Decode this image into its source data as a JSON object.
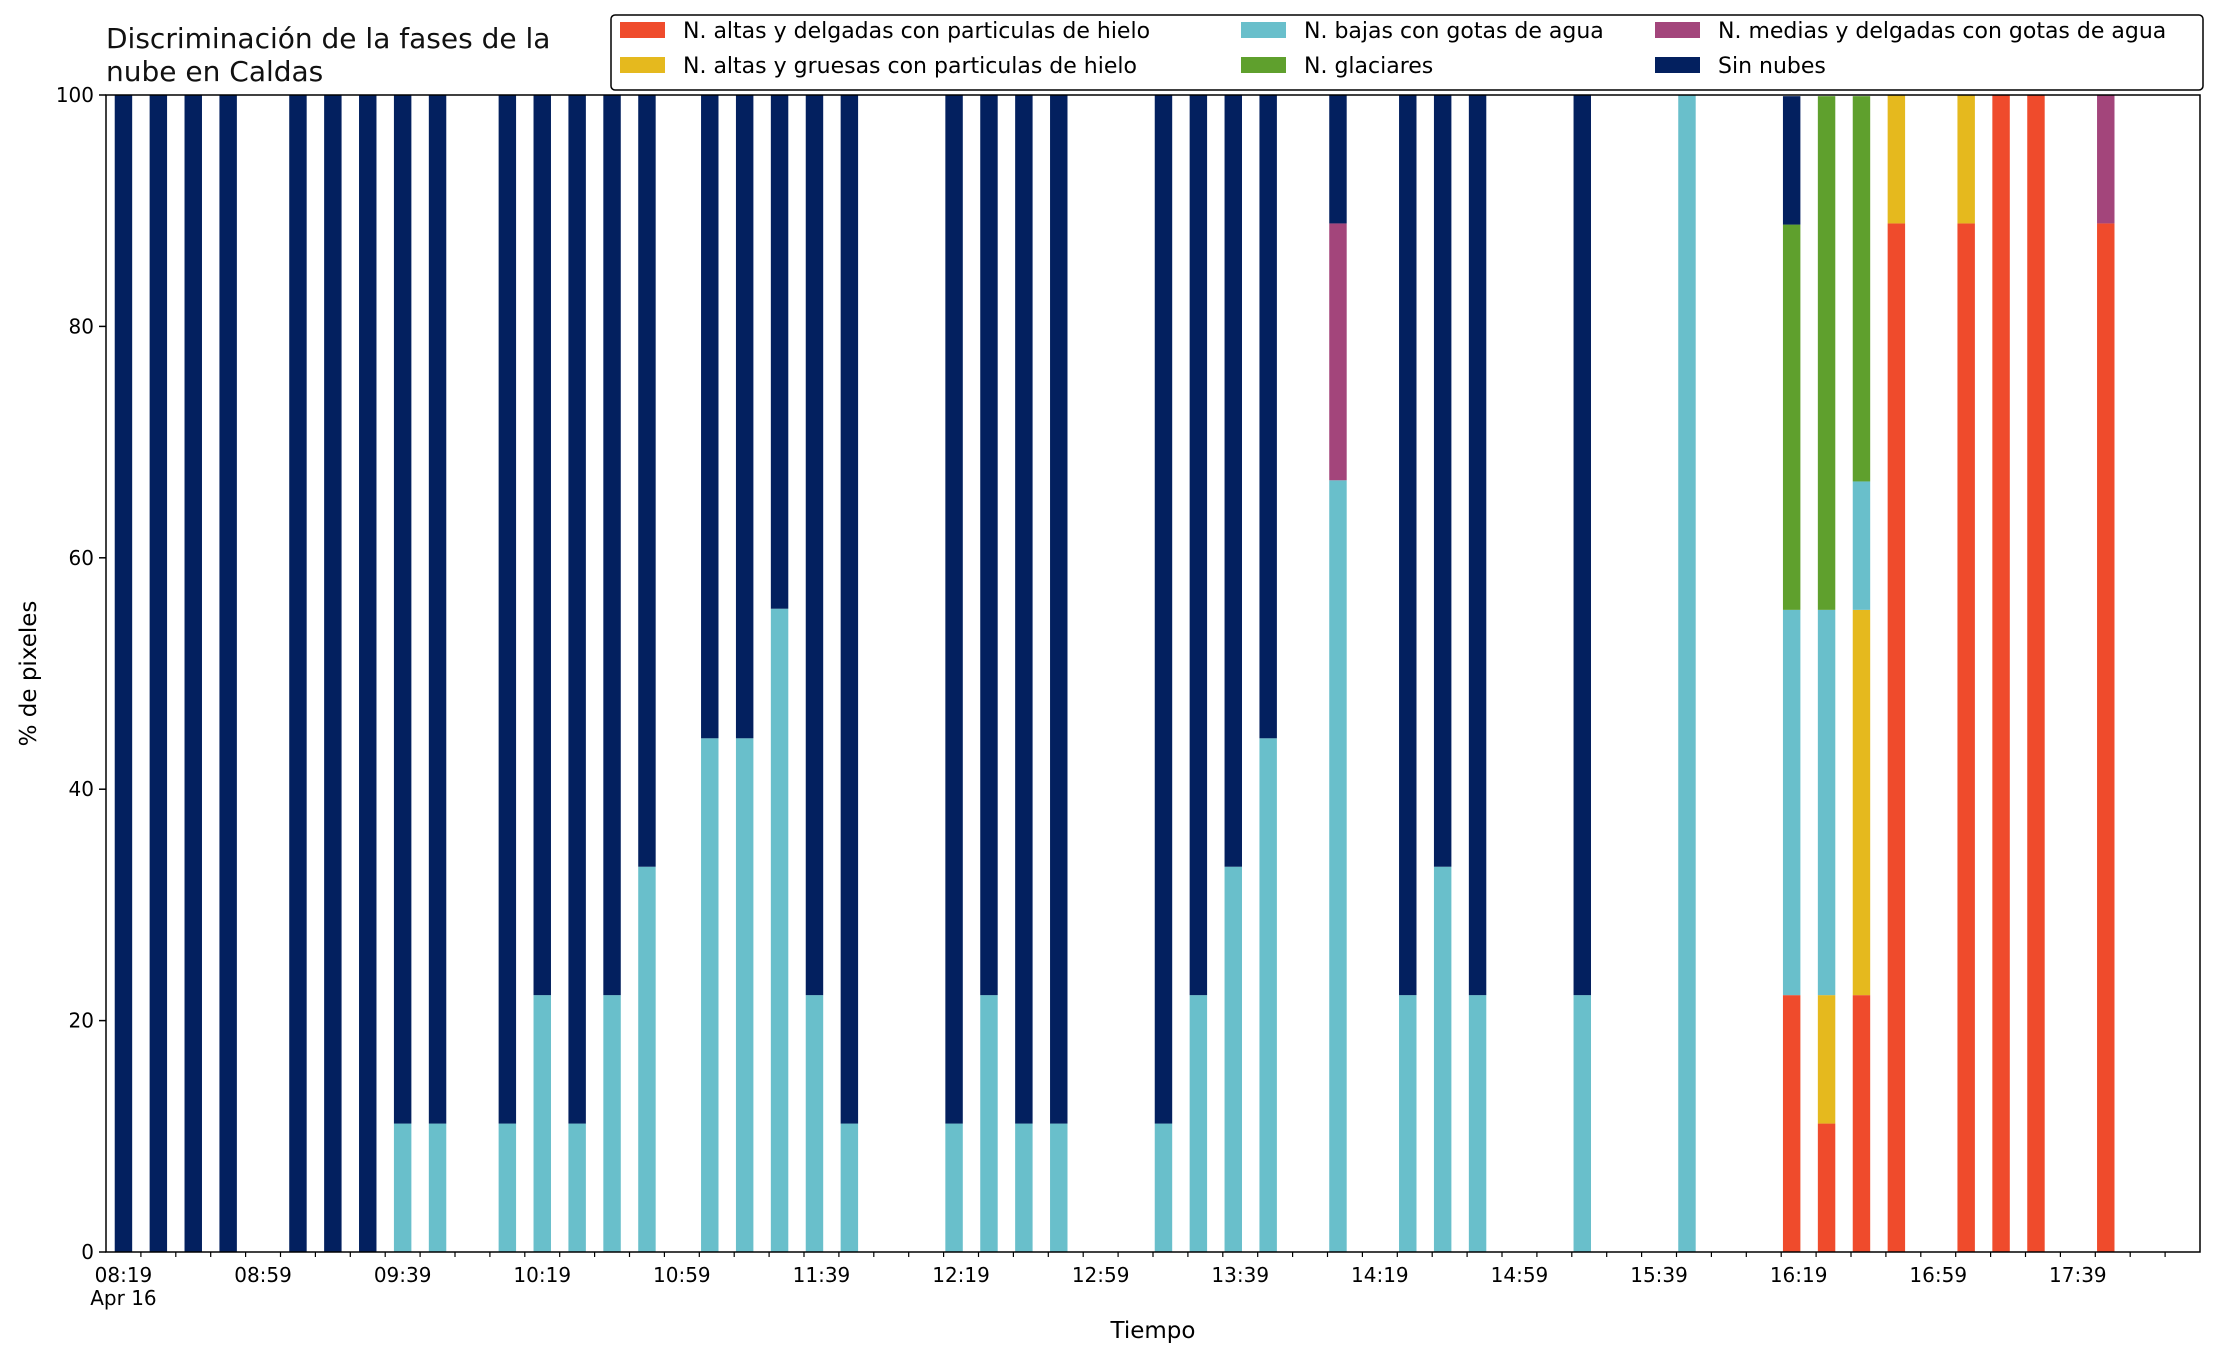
{
  "chart_data": {
    "type": "bar",
    "stacked": true,
    "title": "Discriminación de la fases de la nube en Caldas",
    "xlabel": "Tiempo",
    "ylabel": "% de pixeles",
    "ylim": [
      0,
      100
    ],
    "yticks": [
      0,
      20,
      40,
      60,
      80,
      100
    ],
    "x_range": [
      "08:14",
      "18:14"
    ],
    "xtick_labels": [
      "08:19",
      "08:59",
      "09:39",
      "10:19",
      "10:59",
      "11:39",
      "12:19",
      "12:59",
      "13:39",
      "14:19",
      "14:59",
      "15:39",
      "16:19",
      "16:59",
      "17:39"
    ],
    "xtick_date": "Apr 16",
    "minor_tick_interval_minutes": 10,
    "bar_width_minutes": 5,
    "grid": false,
    "legend_position": "top-right",
    "legend_ncols": 3,
    "categories": [
      "08:19",
      "08:29",
      "08:39",
      "08:49",
      "09:09",
      "09:19",
      "09:29",
      "09:39",
      "09:49",
      "10:09",
      "10:19",
      "10:29",
      "10:39",
      "10:49",
      "11:07",
      "11:17",
      "11:27",
      "11:37",
      "11:47",
      "12:17",
      "12:27",
      "12:37",
      "12:47",
      "13:17",
      "13:27",
      "13:37",
      "13:47",
      "14:07",
      "14:27",
      "14:37",
      "14:47",
      "15:17",
      "15:47",
      "16:17",
      "16:27",
      "16:37",
      "16:47",
      "17:07",
      "17:17",
      "17:27",
      "17:47"
    ],
    "series": [
      {
        "name": "N. altas y delgadas con particulas de hielo",
        "color": "#ef4b2c",
        "values": [
          0,
          0,
          0,
          0,
          0,
          0,
          0,
          0,
          0,
          0,
          0,
          0,
          0,
          0,
          0,
          0,
          0,
          0,
          0,
          0,
          0,
          0,
          0,
          0,
          0,
          0,
          0,
          0,
          0,
          0,
          0,
          0,
          0,
          22.2,
          11.1,
          22.2,
          88.9,
          88.9,
          100,
          100,
          88.9
        ]
      },
      {
        "name": "N. altas y gruesas con particulas de hielo",
        "color": "#e5b91e",
        "values": [
          0,
          0,
          0,
          0,
          0,
          0,
          0,
          0,
          0,
          0,
          0,
          0,
          0,
          0,
          0,
          0,
          0,
          0,
          0,
          0,
          0,
          0,
          0,
          0,
          0,
          0,
          0,
          0,
          0,
          0,
          0,
          0,
          0,
          0,
          11.1,
          33.3,
          11.1,
          11.1,
          0,
          0,
          0
        ]
      },
      {
        "name": "N. bajas con gotas de agua",
        "color": "#69bfcb",
        "values": [
          0,
          0,
          0,
          0,
          0,
          0,
          0,
          11.1,
          11.1,
          11.1,
          22.2,
          11.1,
          22.2,
          33.3,
          44.4,
          44.4,
          55.6,
          22.2,
          11.1,
          11.1,
          22.2,
          11.1,
          11.1,
          11.1,
          22.2,
          33.3,
          44.4,
          66.7,
          22.2,
          33.3,
          22.2,
          22.2,
          100,
          33.3,
          33.3,
          11.1,
          0,
          0,
          0,
          0,
          0
        ]
      },
      {
        "name": "N. glaciares",
        "color": "#5fa02d",
        "values": [
          0,
          0,
          0,
          0,
          0,
          0,
          0,
          0,
          0,
          0,
          0,
          0,
          0,
          0,
          0,
          0,
          0,
          0,
          0,
          0,
          0,
          0,
          0,
          0,
          0,
          0,
          0,
          0,
          0,
          0,
          0,
          0,
          0,
          33.3,
          44.4,
          33.3,
          0,
          0,
          0,
          0,
          0
        ]
      },
      {
        "name": "N. medias y delgadas con gotas de agua",
        "color": "#a3457b",
        "values": [
          0,
          0,
          0,
          0,
          0,
          0,
          0,
          0,
          0,
          0,
          0,
          0,
          0,
          0,
          0,
          0,
          0,
          0,
          0,
          0,
          0,
          0,
          0,
          0,
          0,
          0,
          0,
          22.2,
          0,
          0,
          0,
          0,
          0,
          0,
          0,
          0,
          0,
          0,
          0,
          0,
          11.1
        ]
      },
      {
        "name": "Sin nubes",
        "color": "#03205f",
        "values": [
          100,
          100,
          100,
          100,
          100,
          100,
          100,
          88.9,
          88.9,
          88.9,
          77.8,
          88.9,
          77.8,
          66.7,
          55.6,
          55.6,
          44.4,
          77.8,
          88.9,
          88.9,
          77.8,
          88.9,
          88.9,
          88.9,
          77.8,
          66.7,
          55.6,
          11.1,
          77.8,
          66.7,
          77.8,
          77.8,
          0,
          11.1,
          0,
          0,
          0,
          0,
          0,
          0,
          0
        ]
      }
    ]
  }
}
